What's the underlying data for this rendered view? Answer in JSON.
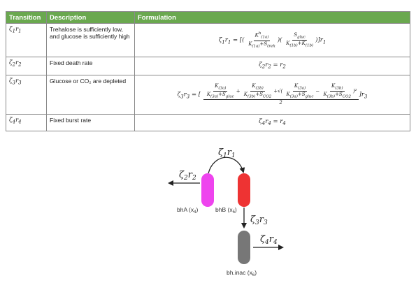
{
  "table": {
    "headers": [
      "Transition",
      "Description",
      "Formulation"
    ],
    "rows": [
      {
        "transition": "ζ1r1",
        "description": "Trehalose is sufficiently low, and glucose is sufficiently high",
        "formulation": "ζ1r1 = [(K(1a) / (K(1a) + S_treh))(S_gluc / (K(1b) + K(1b)))]r1"
      },
      {
        "transition": "ζ2r2",
        "description": "Fixed death rate",
        "formulation": "ζ2r2 = r2"
      },
      {
        "transition": "ζ3r3",
        "description": "Glucose or CO₂ are depleted",
        "formulation": "ζ3r3 = [ ... ]r3"
      },
      {
        "transition": "ζ4r4",
        "description": "Fixed burst rate",
        "formulation": "ζ4r4 = r4"
      }
    ]
  },
  "diagram": {
    "nodes": [
      {
        "label": "bhA (x₄)",
        "color": "#ee44ee"
      },
      {
        "label": "bhB (x₅)",
        "color": "#ee3333"
      },
      {
        "label": "bh.inac (x₆)",
        "color": "#777777"
      }
    ],
    "transitions": [
      "ζ1r1",
      "ζ2r2",
      "ζ3r3",
      "ζ4r4"
    ]
  }
}
